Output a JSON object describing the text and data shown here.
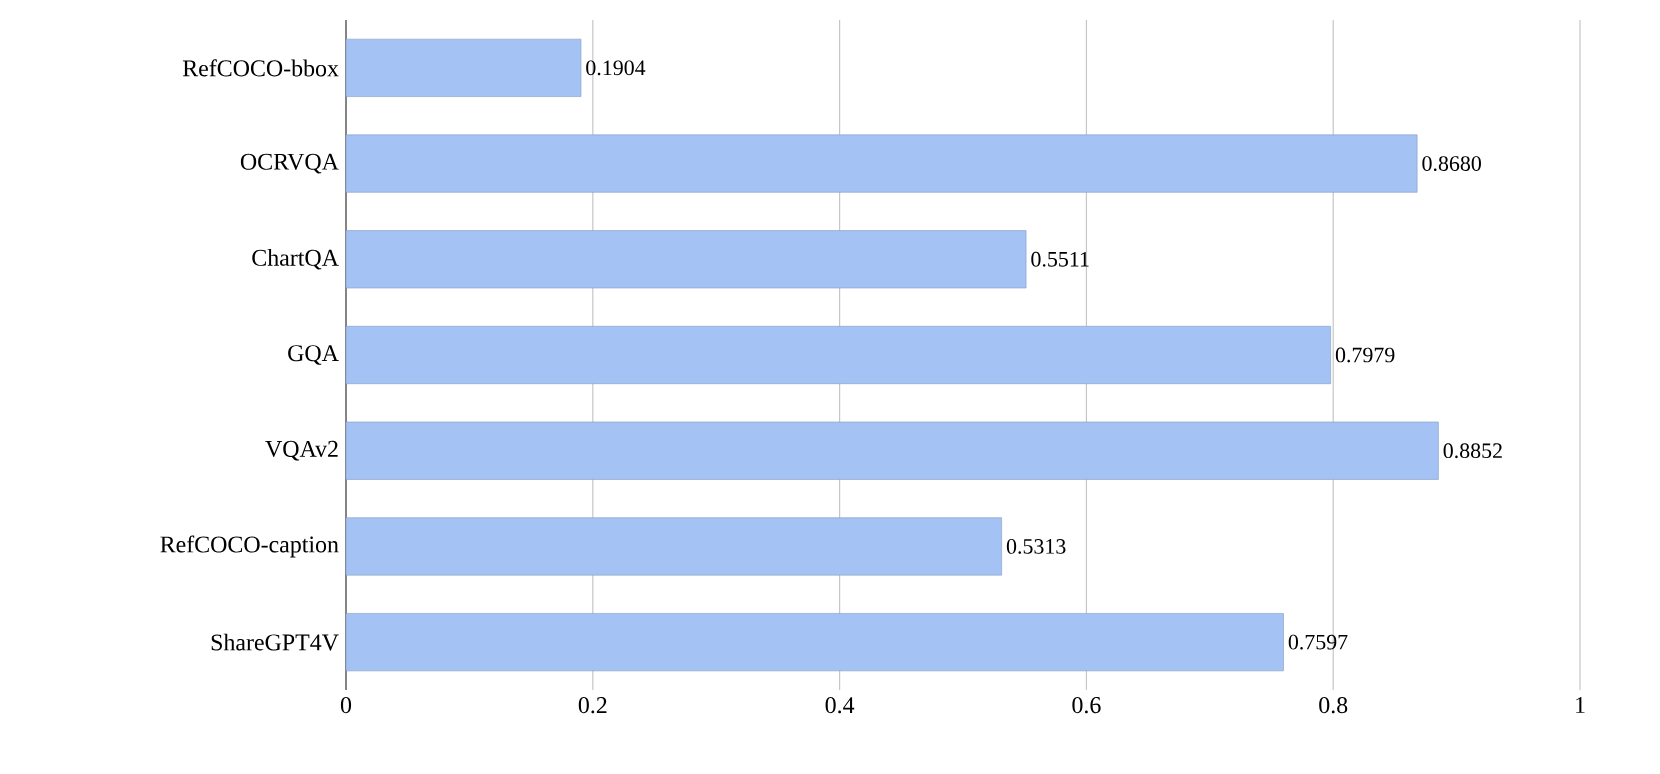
{
  "chart_data": {
    "type": "bar",
    "orientation": "horizontal",
    "categories": [
      "RefCOCO-bbox",
      "OCRVQA",
      "ChartQA",
      "GQA",
      "VQAv2",
      "RefCOCO-caption",
      "ShareGPT4V"
    ],
    "values": [
      0.1904,
      0.868,
      0.5511,
      0.7979,
      0.8852,
      0.5313,
      0.7597
    ],
    "value_labels": [
      "0.1904",
      "0.8680",
      "0.5511",
      "0.7979",
      "0.8852",
      "0.5313",
      "0.7597"
    ],
    "color": "#a4c2f4",
    "xlim": [
      0,
      1
    ],
    "xticks": [
      0,
      0.2,
      0.4,
      0.6,
      0.8,
      1
    ],
    "grid": "x"
  }
}
